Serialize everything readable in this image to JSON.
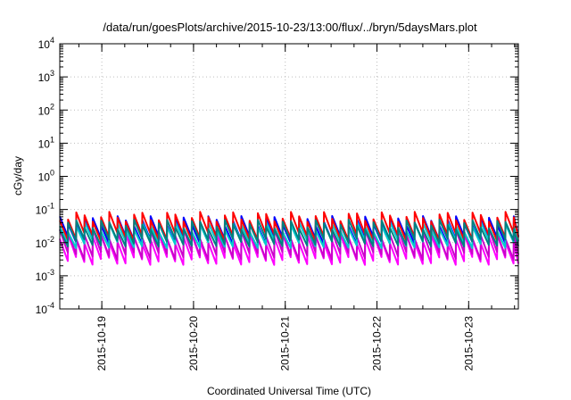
{
  "chart_data": {
    "type": "line",
    "title": "/data/run/goesPlots/archive/2015-10-23/13:00/flux/../bryn/5daysMars.plot",
    "xlabel": "Coordinated Universal Time (UTC)",
    "ylabel": "cGy/day",
    "yscale": "log",
    "ylim_exponents": [
      -4,
      4
    ],
    "y_ticks": [
      {
        "base": "10",
        "exp": "4"
      },
      {
        "base": "10",
        "exp": "3"
      },
      {
        "base": "10",
        "exp": "2"
      },
      {
        "base": "10",
        "exp": "1"
      },
      {
        "base": "10",
        "exp": "0"
      },
      {
        "base": "10",
        "exp": "-1"
      },
      {
        "base": "10",
        "exp": "-2"
      },
      {
        "base": "10",
        "exp": "-3"
      },
      {
        "base": "10",
        "exp": "-4"
      }
    ],
    "xlim": [
      "2015-10-18 13:00",
      "2015-10-23 13:00"
    ],
    "x_ticks": [
      "2015-10-19",
      "2015-10-20",
      "2015-10-21",
      "2015-10-22",
      "2015-10-23"
    ],
    "grid": true,
    "legend": "none",
    "series_colors": [
      "#ff00ff",
      "#cc00cc",
      "#0000ff",
      "#00cccc",
      "#ff0000",
      "#008080"
    ],
    "series": [
      {
        "color": "#ff00ff",
        "pattern": "sawtooth",
        "peak": 0.013,
        "trough": 0.0028
      },
      {
        "color": "#cc00cc",
        "pattern": "sawtooth",
        "peak": 0.018,
        "trough": 0.004
      },
      {
        "color": "#0000ff",
        "pattern": "sawtooth",
        "peak": 0.045,
        "trough": 0.012
      },
      {
        "color": "#00cccc",
        "pattern": "sawtooth",
        "peak": 0.03,
        "trough": 0.009
      },
      {
        "color": "#ff0000",
        "pattern": "sawtooth",
        "peak": 0.06,
        "trough": 0.015
      },
      {
        "color": "#008080",
        "pattern": "sawtooth",
        "peak": 0.035,
        "trough": 0.01
      }
    ]
  }
}
